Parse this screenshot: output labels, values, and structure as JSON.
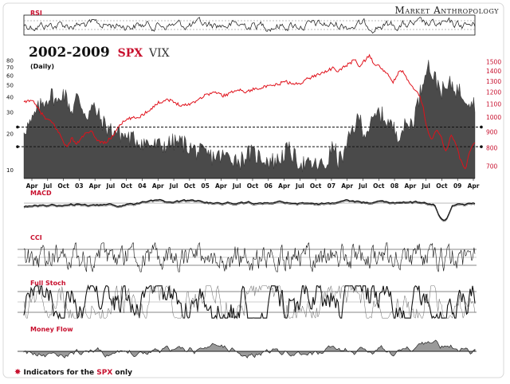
{
  "brand": "Market Anthropology",
  "title": "2002-2009",
  "title_spx": "SPX",
  "title_vix": "VIX",
  "subtitle": "(Daily)",
  "footnote": {
    "prefix": "Indicators for the ",
    "spx": "SPX",
    "suffix": " only",
    "marker_color": "#c8102e"
  },
  "colors": {
    "spx": "#e0111b",
    "vix_fill": "#4a4a4a",
    "indicator_line": "#111111",
    "money_flow_fill": "#9a9a9a",
    "label": "#c8102e"
  },
  "chart_data": [
    {
      "id": "rsi",
      "type": "line",
      "title": "RSI",
      "oscillator": true,
      "reference_lines": 2
    },
    {
      "id": "main",
      "type": "line",
      "title": "2002-2009 SPX VIX",
      "subtitle": "(Daily)",
      "x_labels": [
        "Apr",
        "Jul",
        "Oct",
        "03",
        "Apr",
        "Jul",
        "Oct",
        "04",
        "Apr",
        "Jul",
        "Oct",
        "05",
        "Apr",
        "Jul",
        "Oct",
        "06",
        "Apr",
        "Jul",
        "Oct",
        "07",
        "Apr",
        "Jul",
        "Oct",
        "08",
        "Apr",
        "Jul",
        "Oct",
        "09",
        "Apr"
      ],
      "left_axis": {
        "series": "VIX",
        "ticks": [
          "80",
          "70",
          "60",
          "50",
          "40",
          "30",
          "20",
          "10"
        ],
        "values": [
          80,
          70,
          60,
          50,
          40,
          30,
          20,
          10
        ],
        "scale": "log"
      },
      "right_axis": {
        "series": "SPX",
        "ticks": [
          "1500",
          "1400",
          "1300",
          "1200",
          "1100",
          "1000",
          "900",
          "800",
          "700"
        ],
        "values": [
          1500,
          1400,
          1300,
          1200,
          1100,
          1000,
          900,
          800,
          700
        ],
        "scale": "log"
      },
      "horizontal_reference_lines_vix": [
        22.5,
        15.5
      ],
      "series": [
        {
          "name": "SPX",
          "axis": "right",
          "style": "line",
          "points": [
            [
              0.0,
              1110
            ],
            [
              1.5,
              1140
            ],
            [
              3.0,
              1060
            ],
            [
              4.5,
              990
            ],
            [
              6.0,
              960
            ],
            [
              7.5,
              880
            ],
            [
              9.0,
              800
            ],
            [
              10.0,
              860
            ],
            [
              11.0,
              820
            ],
            [
              12.5,
              880
            ],
            [
              14.0,
              900
            ],
            [
              15.5,
              840
            ],
            [
              17.0,
              830
            ],
            [
              18.5,
              870
            ],
            [
              20.0,
              950
            ],
            [
              22.0,
              990
            ],
            [
              24.0,
              1000
            ],
            [
              26.0,
              1050
            ],
            [
              28.0,
              1110
            ],
            [
              30.0,
              1140
            ],
            [
              31.5,
              1110
            ],
            [
              33.0,
              1090
            ],
            [
              34.5,
              1100
            ],
            [
              36.0,
              1130
            ],
            [
              38.0,
              1180
            ],
            [
              40.0,
              1200
            ],
            [
              41.5,
              1170
            ],
            [
              43.0,
              1190
            ],
            [
              44.5,
              1230
            ],
            [
              46.0,
              1200
            ],
            [
              47.5,
              1220
            ],
            [
              49.0,
              1240
            ],
            [
              51.0,
              1250
            ],
            [
              53.0,
              1270
            ],
            [
              54.5,
              1300
            ],
            [
              56.0,
              1270
            ],
            [
              57.5,
              1280
            ],
            [
              59.0,
              1320
            ],
            [
              61.0,
              1360
            ],
            [
              63.0,
              1400
            ],
            [
              64.5,
              1430
            ],
            [
              65.5,
              1390
            ],
            [
              66.5,
              1440
            ],
            [
              68.0,
              1480
            ],
            [
              69.0,
              1530
            ],
            [
              70.0,
              1440
            ],
            [
              71.0,
              1510
            ],
            [
              72.0,
              1560
            ],
            [
              73.0,
              1480
            ],
            [
              74.5,
              1430
            ],
            [
              76.0,
              1350
            ],
            [
              77.0,
              1290
            ],
            [
              78.0,
              1380
            ],
            [
              79.0,
              1400
            ],
            [
              80.0,
              1300
            ],
            [
              81.0,
              1250
            ],
            [
              82.0,
              1210
            ],
            [
              83.0,
              1110
            ],
            [
              84.0,
              920
            ],
            [
              85.0,
              850
            ],
            [
              86.0,
              910
            ],
            [
              87.0,
              860
            ],
            [
              88.0,
              770
            ],
            [
              89.0,
              880
            ],
            [
              90.0,
              830
            ],
            [
              91.0,
              730
            ],
            [
              92.0,
              680
            ],
            [
              93.0,
              790
            ],
            [
              94.0,
              830
            ]
          ]
        },
        {
          "name": "VIX",
          "axis": "left",
          "style": "area",
          "points": [
            [
              0.0,
              22
            ],
            [
              1.5,
              24
            ],
            [
              3.0,
              32
            ],
            [
              4.5,
              38
            ],
            [
              6.0,
              42
            ],
            [
              7.0,
              34
            ],
            [
              8.0,
              45
            ],
            [
              9.0,
              38
            ],
            [
              10.0,
              30
            ],
            [
              11.0,
              40
            ],
            [
              12.0,
              34
            ],
            [
              13.0,
              28
            ],
            [
              14.5,
              33
            ],
            [
              16.0,
              26
            ],
            [
              17.5,
              22
            ],
            [
              19.0,
              21
            ],
            [
              21.0,
              19
            ],
            [
              23.0,
              18
            ],
            [
              25.0,
              17
            ],
            [
              27.0,
              16
            ],
            [
              29.0,
              16
            ],
            [
              31.0,
              17
            ],
            [
              33.0,
              17
            ],
            [
              35.0,
              15
            ],
            [
              37.0,
              14
            ],
            [
              39.0,
              13
            ],
            [
              41.0,
              13
            ],
            [
              43.0,
              13
            ],
            [
              45.0,
              12
            ],
            [
              47.0,
              14
            ],
            [
              49.0,
              13
            ],
            [
              51.0,
              12
            ],
            [
              53.0,
              12
            ],
            [
              55.0,
              15
            ],
            [
              57.0,
              12
            ],
            [
              59.0,
              11
            ],
            [
              61.0,
              11
            ],
            [
              63.0,
              11
            ],
            [
              64.5,
              16
            ],
            [
              65.5,
              12
            ],
            [
              67.0,
              14
            ],
            [
              68.5,
              22
            ],
            [
              70.0,
              27
            ],
            [
              71.0,
              20
            ],
            [
              72.5,
              24
            ],
            [
              74.0,
              30
            ],
            [
              75.5,
              26
            ],
            [
              77.0,
              22
            ],
            [
              78.0,
              20
            ],
            [
              79.5,
              23
            ],
            [
              81.0,
              25
            ],
            [
              82.0,
              34
            ],
            [
              83.0,
              50
            ],
            [
              84.0,
              78
            ],
            [
              85.0,
              62
            ],
            [
              86.0,
              54
            ],
            [
              87.0,
              46
            ],
            [
              88.0,
              45
            ],
            [
              89.0,
              52
            ],
            [
              90.0,
              47
            ],
            [
              91.0,
              44
            ],
            [
              92.0,
              40
            ],
            [
              93.0,
              38
            ],
            [
              94.0,
              36
            ]
          ]
        }
      ]
    },
    {
      "id": "macd",
      "type": "line",
      "title": "MACD",
      "series_count": 2
    },
    {
      "id": "cci",
      "type": "line",
      "title": "CCI",
      "reference_lines": 3
    },
    {
      "id": "full_stoch",
      "type": "line",
      "title": "Full Stoch",
      "reference_lines": 3
    },
    {
      "id": "money_flow",
      "type": "area",
      "title": "Money Flow",
      "reference_lines": 1
    }
  ]
}
